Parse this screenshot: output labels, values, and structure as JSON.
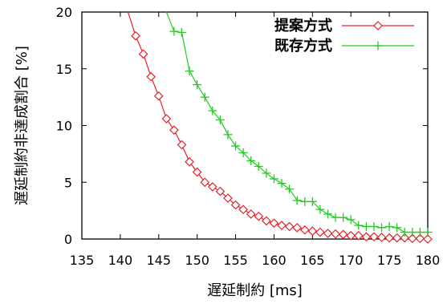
{
  "chart_data": {
    "type": "line",
    "title": "",
    "xlabel": "遅延制約 [ms]",
    "ylabel": "遅延制約非達成割合 [%]",
    "xlim": [
      135,
      180
    ],
    "ylim": [
      0,
      20
    ],
    "xticks": [
      "135",
      "140",
      "145",
      "150",
      "155",
      "160",
      "165",
      "170",
      "175",
      "180"
    ],
    "yticks": [
      "0",
      "5",
      "10",
      "15",
      "20"
    ],
    "grid": false,
    "legend_position": "top-right",
    "series": [
      {
        "name": "提案方式",
        "color": "#e8202a",
        "marker": "diamond",
        "x": [
          142,
          143,
          144,
          145,
          146,
          147,
          148,
          149,
          150,
          151,
          152,
          153,
          154,
          155,
          156,
          157,
          158,
          159,
          160,
          161,
          162,
          163,
          164,
          165,
          166,
          167,
          168,
          169,
          170,
          171,
          172,
          173,
          174,
          175,
          176,
          177,
          178,
          179,
          180
        ],
        "y": [
          17.9,
          16.3,
          14.3,
          12.6,
          10.6,
          9.6,
          8.3,
          6.8,
          5.9,
          5.0,
          4.6,
          4.2,
          3.6,
          3.0,
          2.6,
          2.2,
          2.0,
          1.6,
          1.4,
          1.2,
          1.1,
          1.0,
          0.8,
          0.7,
          0.6,
          0.5,
          0.45,
          0.4,
          0.3,
          0.3,
          0.2,
          0.2,
          0.15,
          0.1,
          0.1,
          0.1,
          0.05,
          0.05,
          0.0
        ],
        "pre_x": [
          141,
          142
        ],
        "pre_y": [
          20,
          17.9
        ]
      },
      {
        "name": "既存方式",
        "color": "#22cc22",
        "marker": "plus",
        "x": [
          147,
          148,
          149,
          150,
          151,
          152,
          153,
          154,
          155,
          156,
          157,
          158,
          159,
          160,
          161,
          162,
          163,
          164,
          165,
          166,
          167,
          168,
          169,
          170,
          171,
          172,
          173,
          174,
          175,
          176,
          177,
          178,
          179,
          180
        ],
        "y": [
          18.3,
          18.2,
          14.8,
          13.6,
          12.5,
          11.3,
          10.5,
          9.2,
          8.2,
          7.6,
          6.9,
          6.4,
          5.8,
          5.3,
          4.9,
          4.4,
          3.4,
          3.3,
          3.3,
          2.6,
          2.2,
          1.9,
          1.9,
          1.7,
          1.2,
          1.1,
          1.1,
          1.0,
          1.1,
          1.0,
          0.6,
          0.6,
          0.6,
          0.6
        ],
        "pre_x": [
          146,
          147
        ],
        "pre_y": [
          20,
          18.3
        ]
      }
    ]
  }
}
